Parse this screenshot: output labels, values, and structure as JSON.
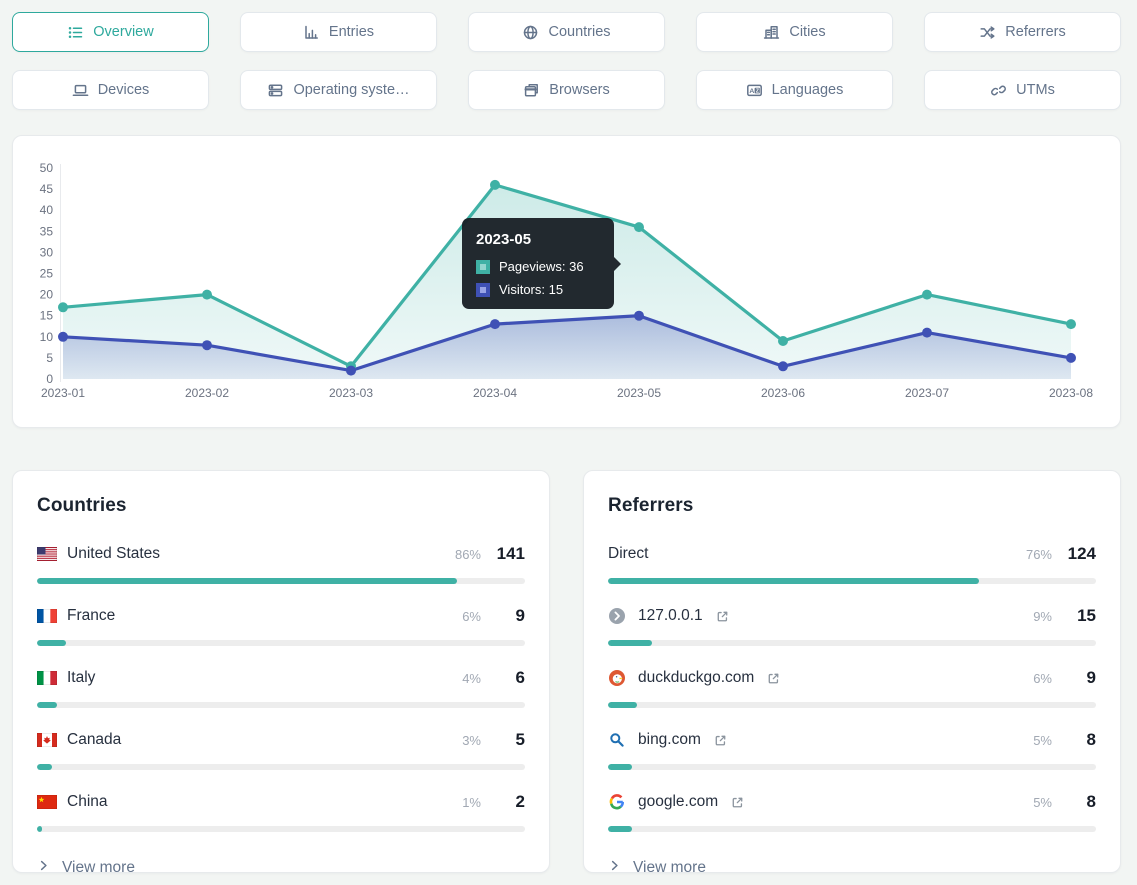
{
  "accent_color": "#2ea99d",
  "nav": {
    "tabs": [
      {
        "id": "overview",
        "label": "Overview",
        "icon": "list-icon",
        "active": true
      },
      {
        "id": "entries",
        "label": "Entries",
        "icon": "chart-icon",
        "active": false
      },
      {
        "id": "countries",
        "label": "Countries",
        "icon": "globe-icon",
        "active": false
      },
      {
        "id": "cities",
        "label": "Cities",
        "icon": "buildings-icon",
        "active": false
      },
      {
        "id": "referrers",
        "label": "Referrers",
        "icon": "shuffle-icon",
        "active": false
      },
      {
        "id": "devices",
        "label": "Devices",
        "icon": "laptop-icon",
        "active": false
      },
      {
        "id": "operating-systems",
        "label": "Operating syste…",
        "icon": "server-icon",
        "active": false
      },
      {
        "id": "browsers",
        "label": "Browsers",
        "icon": "browser-icon",
        "active": false
      },
      {
        "id": "languages",
        "label": "Languages",
        "icon": "translate-icon",
        "active": false
      },
      {
        "id": "utms",
        "label": "UTMs",
        "icon": "link-icon",
        "active": false
      }
    ]
  },
  "chart_data": {
    "type": "line",
    "categories": [
      "2023-01",
      "2023-02",
      "2023-03",
      "2023-04",
      "2023-05",
      "2023-06",
      "2023-07",
      "2023-08"
    ],
    "series": [
      {
        "name": "Pageviews",
        "color": "#3fb1a5",
        "values": [
          17,
          20,
          3,
          46,
          36,
          9,
          20,
          13
        ]
      },
      {
        "name": "Visitors",
        "color": "#3f51b5",
        "values": [
          10,
          8,
          2,
          13,
          15,
          3,
          11,
          5
        ]
      }
    ],
    "ylim": [
      0,
      50
    ],
    "ytick_step": 5,
    "area_fill": true,
    "grid": false,
    "legend_position": "tooltip-only"
  },
  "tooltip": {
    "title": "2023-05",
    "items": [
      {
        "label": "Pageviews",
        "value": 36,
        "color": "#3fb1a5",
        "inner_color": "#93d6cf"
      },
      {
        "label": "Visitors",
        "value": 15,
        "color": "#3f51b5",
        "inner_color": "#9aa5e6"
      }
    ]
  },
  "cards": {
    "countries": {
      "title": "Countries",
      "view_more": "View more",
      "rows": [
        {
          "name": "United States",
          "icon": "flag-us",
          "percent": 86,
          "count": "141",
          "external_link": false
        },
        {
          "name": "France",
          "icon": "flag-fr",
          "percent": 6,
          "count": "9",
          "external_link": false
        },
        {
          "name": "Italy",
          "icon": "flag-it",
          "percent": 4,
          "count": "6",
          "external_link": false
        },
        {
          "name": "Canada",
          "icon": "flag-ca",
          "percent": 3,
          "count": "5",
          "external_link": false
        },
        {
          "name": "China",
          "icon": "flag-cn",
          "percent": 1,
          "count": "2",
          "external_link": false
        }
      ]
    },
    "referrers": {
      "title": "Referrers",
      "view_more": "View more",
      "rows": [
        {
          "name": "Direct",
          "icon": null,
          "percent": 76,
          "count": "124",
          "external_link": false
        },
        {
          "name": "127.0.0.1",
          "icon": "globe-gray-icon",
          "percent": 9,
          "count": "15",
          "external_link": true
        },
        {
          "name": "duckduckgo.com",
          "icon": "duckduckgo-icon",
          "percent": 6,
          "count": "9",
          "external_link": true
        },
        {
          "name": "bing.com",
          "icon": "bing-icon",
          "percent": 5,
          "count": "8",
          "external_link": true
        },
        {
          "name": "google.com",
          "icon": "google-icon",
          "percent": 5,
          "count": "8",
          "external_link": true
        }
      ]
    }
  }
}
